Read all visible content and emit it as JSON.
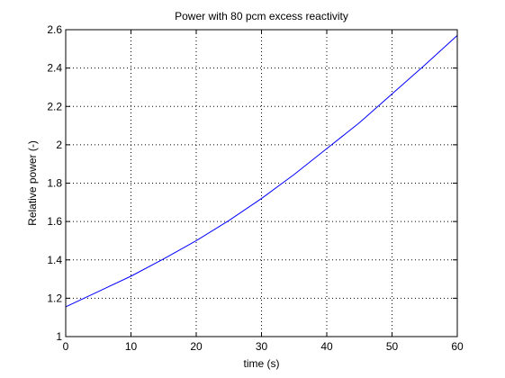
{
  "chart_data": {
    "type": "line",
    "title": "Power with 80 pcm excess reactivity",
    "xlabel": "time (s)",
    "ylabel": "Relative power (-)",
    "xlim": [
      0,
      60
    ],
    "ylim": [
      1,
      2.6
    ],
    "xticks": [
      0,
      10,
      20,
      30,
      40,
      50,
      60
    ],
    "yticks": [
      1,
      1.2,
      1.4,
      1.6,
      1.8,
      2,
      2.2,
      2.4,
      2.6
    ],
    "xtick_labels": [
      "0",
      "10",
      "20",
      "30",
      "40",
      "50",
      "60"
    ],
    "ytick_labels": [
      "1",
      "1.2",
      "1.4",
      "1.6",
      "1.8",
      "2",
      "2.2",
      "2.4",
      "2.6"
    ],
    "grid": true,
    "grid_style": "dotted",
    "series": [
      {
        "color": "#0000ff",
        "x": [
          0,
          5,
          10,
          15,
          20,
          25,
          30,
          35,
          40,
          45,
          50,
          55,
          60
        ],
        "y": [
          1.155,
          1.235,
          1.315,
          1.405,
          1.5,
          1.605,
          1.72,
          1.845,
          1.98,
          2.115,
          2.265,
          2.415,
          2.57
        ]
      }
    ]
  }
}
